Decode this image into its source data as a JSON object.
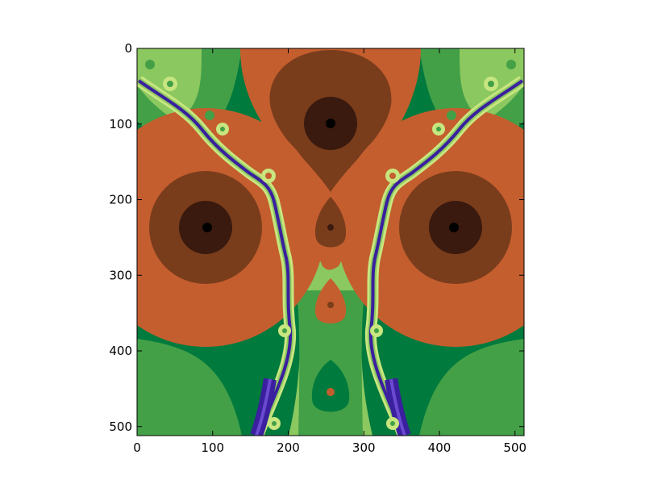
{
  "chart_data": {
    "type": "heatmap",
    "title": "",
    "xlabel": "",
    "ylabel": "",
    "xlim": [
      0,
      512
    ],
    "ylim": [
      512,
      0
    ],
    "x_ticks": [
      0,
      100,
      200,
      300,
      400,
      500
    ],
    "y_ticks": [
      0,
      100,
      200,
      300,
      400,
      500
    ],
    "x_tick_labels": [
      "0",
      "100",
      "200",
      "300",
      "400",
      "500"
    ],
    "y_tick_labels": [
      "0",
      "100",
      "200",
      "300",
      "400",
      "500"
    ],
    "grid": false,
    "colormap": [
      "#000000",
      "#3a1a0e",
      "#7a3d1c",
      "#c45e2e",
      "#007a3d",
      "#43a047",
      "#8cc860",
      "#c8e680",
      "#3a1f9e",
      "#6a4ad0"
    ],
    "background_color": "#007a3d",
    "basins": [
      {
        "x": 256,
        "y": 100,
        "color": "#000000"
      },
      {
        "x": 92,
        "y": 236,
        "color": "#000000"
      },
      {
        "x": 420,
        "y": 236,
        "color": "#000000"
      },
      {
        "x": 256,
        "y": 236,
        "color": "#3a1a0e"
      },
      {
        "x": 256,
        "y": 340,
        "color": "#7a3d1c"
      },
      {
        "x": 256,
        "y": 455,
        "color": "#c45e2e"
      }
    ]
  }
}
